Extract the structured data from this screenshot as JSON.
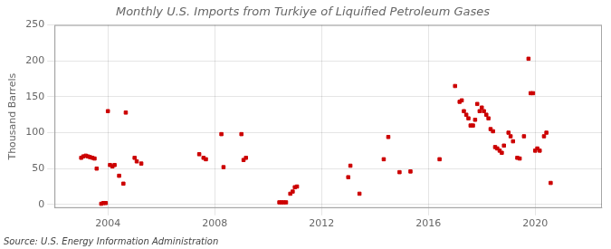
{
  "chart_data": {
    "type": "scatter",
    "title": "Monthly U.S. Imports from Turkiye of Liquified Petroleum Gases",
    "ylabel": "Thousand Barrels",
    "annotations": [
      "Source: U.S. Energy Information Administration"
    ],
    "color": "#cc0000",
    "marker": "square",
    "grid": true,
    "xlim": [
      2002.0,
      2022.5
    ],
    "xticks": [
      2004,
      2008,
      2012,
      2016,
      2020
    ],
    "ylim": [
      -5,
      250
    ],
    "yticks": [
      0,
      50,
      100,
      150,
      200,
      250
    ],
    "x": [
      2003.0,
      2003.08,
      2003.17,
      2003.25,
      2003.33,
      2003.42,
      2003.5,
      2003.58,
      2003.75,
      2003.83,
      2003.92,
      2004.0,
      2004.08,
      2004.17,
      2004.25,
      2004.42,
      2004.58,
      2004.67,
      2005.0,
      2005.08,
      2005.25,
      2007.42,
      2007.58,
      2007.67,
      2008.25,
      2008.33,
      2009.0,
      2009.08,
      2009.17,
      2010.42,
      2010.5,
      2010.58,
      2010.67,
      2010.83,
      2010.92,
      2011.0,
      2011.08,
      2013.0,
      2013.08,
      2013.42,
      2014.33,
      2014.5,
      2014.92,
      2015.33,
      2016.42,
      2017.0,
      2017.17,
      2017.25,
      2017.33,
      2017.42,
      2017.5,
      2017.58,
      2017.67,
      2017.75,
      2017.83,
      2017.92,
      2018.0,
      2018.08,
      2018.17,
      2018.25,
      2018.33,
      2018.42,
      2018.5,
      2018.58,
      2018.67,
      2018.75,
      2018.83,
      2019.0,
      2019.08,
      2019.17,
      2019.33,
      2019.42,
      2019.58,
      2019.75,
      2019.83,
      2019.92,
      2020.0,
      2020.08,
      2020.17,
      2020.33,
      2020.42,
      2020.58
    ],
    "values": [
      65,
      67,
      68,
      67,
      66,
      65,
      64,
      50,
      1,
      2,
      2,
      130,
      55,
      53,
      55,
      40,
      29,
      128,
      65,
      60,
      57,
      70,
      65,
      63,
      98,
      52,
      98,
      62,
      65,
      3,
      3,
      3,
      3,
      15,
      18,
      24,
      25,
      38,
      54,
      15,
      63,
      94,
      45,
      46,
      63,
      165,
      143,
      145,
      130,
      125,
      120,
      110,
      110,
      118,
      140,
      130,
      135,
      130,
      125,
      120,
      105,
      102,
      80,
      78,
      75,
      72,
      82,
      100,
      95,
      88,
      65,
      64,
      95,
      203,
      155,
      155,
      75,
      78,
      75,
      95,
      100,
      30
    ]
  }
}
